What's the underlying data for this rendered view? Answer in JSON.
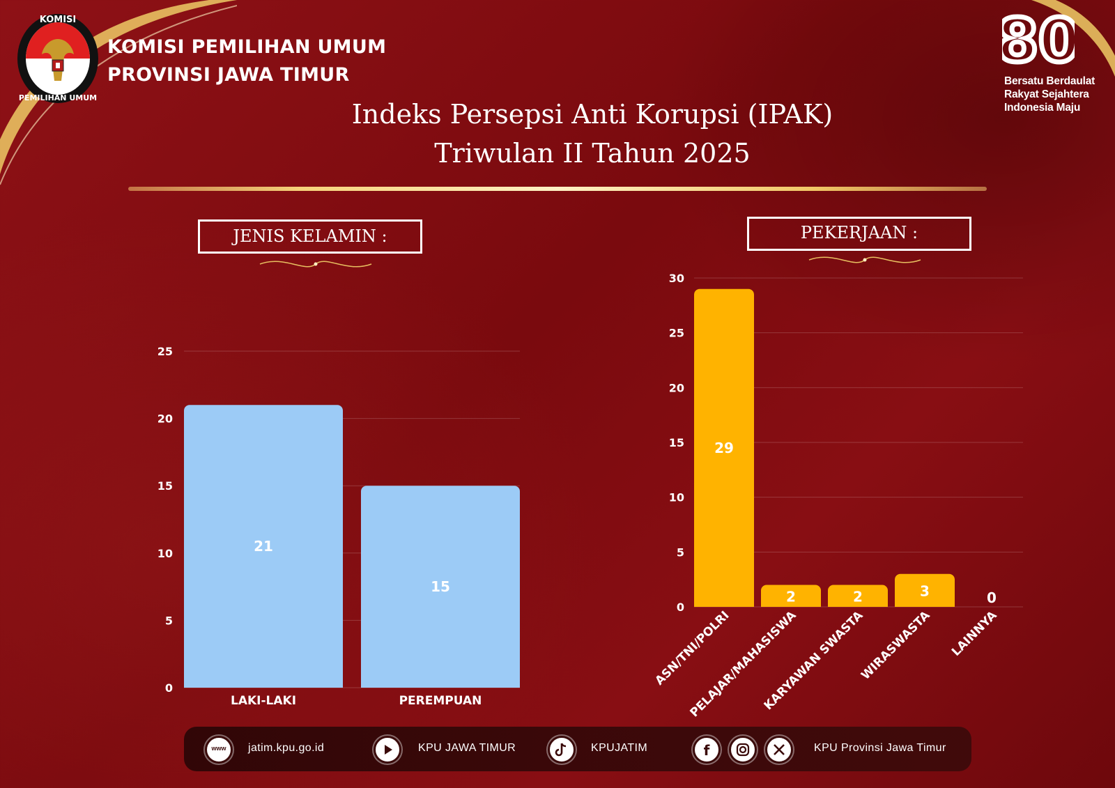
{
  "header": {
    "org_line1": "KOMISI PEMILIHAN UMUM",
    "org_line2": "PROVINSI JAWA TIMUR",
    "badge_number": "80",
    "tagline_line1": "Bersatu Berdaulat",
    "tagline_line2": "Rakyat Sejahtera",
    "tagline_line3": "Indonesia Maju"
  },
  "title_line1": "Indeks Persepsi Anti Korupsi (IPAK)",
  "title_line2": "Triwulan II Tahun 2025",
  "sections": {
    "left_label": "JENIS KELAMIN :",
    "right_label": "PEKERJAAN :"
  },
  "chart_data": [
    {
      "type": "bar",
      "categories": [
        "LAKI-LAKI",
        "PEREMPUAN"
      ],
      "values": [
        21,
        15
      ],
      "ylim": [
        0,
        25
      ],
      "yticks": [
        0,
        5,
        10,
        15,
        20,
        25
      ],
      "grid": true,
      "color": "#9ccbf6"
    },
    {
      "type": "bar",
      "categories": [
        "ASN/TNI/POLRI",
        "PELAJAR/MAHASISWA",
        "KARYAWAN SWASTA",
        "WIRASWASTA",
        "LAINNYA"
      ],
      "values": [
        29,
        2,
        2,
        3,
        0
      ],
      "ylim": [
        0,
        30
      ],
      "yticks": [
        0,
        5,
        10,
        15,
        20,
        25,
        30
      ],
      "grid": true,
      "color": "#ffb300"
    }
  ],
  "footer": {
    "website_icon_text": "www",
    "website": "jatim.kpu.go.id",
    "youtube": "KPU JAWA TIMUR",
    "tiktok": "KPUJATIM",
    "social": "KPU Provinsi Jawa Timur"
  },
  "colors": {
    "background": "#7f0b0f",
    "gold": "#f3cf73",
    "bar_gender": "#9ccbf6",
    "bar_job": "#ffb300"
  }
}
